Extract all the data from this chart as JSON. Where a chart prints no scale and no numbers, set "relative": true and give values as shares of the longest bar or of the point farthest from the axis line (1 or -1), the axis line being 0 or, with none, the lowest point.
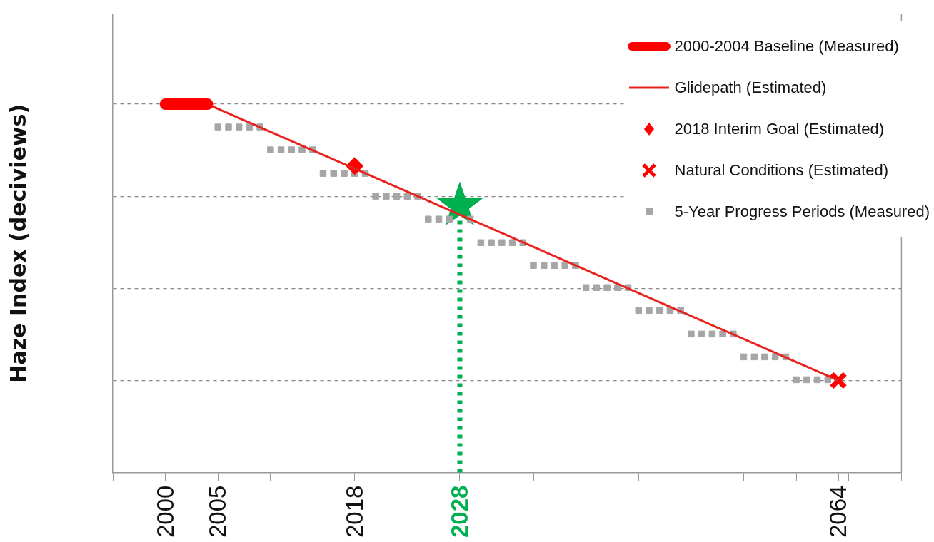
{
  "chart_data": {
    "type": "line",
    "relative": true,
    "ylabel": "Haze Index (deciviews)",
    "xlim": [
      1995,
      2070
    ],
    "xticks": [
      {
        "value": 1995,
        "label": null
      },
      2000,
      2005,
      {
        "value": 2010,
        "label": null
      },
      {
        "value": 2015,
        "label": null
      },
      2018,
      {
        "value": 2020,
        "label": null
      },
      {
        "value": 2025,
        "label": null
      },
      2028,
      {
        "value": 2030,
        "label": null
      },
      {
        "value": 2035,
        "label": null
      },
      {
        "value": 2040,
        "label": null
      },
      {
        "value": 2045,
        "label": null
      },
      {
        "value": 2050,
        "label": null
      },
      {
        "value": 2055,
        "label": null
      },
      {
        "value": 2060,
        "label": null
      },
      2064,
      {
        "value": 2065,
        "label": null
      },
      {
        "value": 2070,
        "label": null
      }
    ],
    "grid": "y",
    "legend": "top right",
    "series": [
      {
        "name": "2000-2004 Baseline (Measured)",
        "color": "#ff0000",
        "marker": "none",
        "x": [
          2000,
          2004
        ],
        "values": [
          1,
          1
        ]
      },
      {
        "name": "Glidepath (Estimated)",
        "color": "#e8231f",
        "marker": "none",
        "x": [
          2004,
          2064
        ],
        "values": [
          1,
          0.25
        ]
      },
      {
        "name": "2018 Interim Goal (Estimated)",
        "type": "scatter",
        "color": "#ff0000",
        "marker": "diamond",
        "x": [
          2018
        ],
        "values": [
          0.832
        ]
      },
      {
        "name": "Natural Conditions (Estimated)",
        "type": "scatter",
        "color": "#ff0000",
        "marker": "cross",
        "x": [
          2064
        ],
        "values": [
          0.25
        ]
      },
      {
        "name": "5-Year Progress Periods (Measured)",
        "type": "scatter",
        "color": "#a6a6a6",
        "marker": "square",
        "x": [
          2005,
          2006,
          2007,
          2008,
          2009,
          2010,
          2011,
          2012,
          2013,
          2014,
          2015,
          2016,
          2017,
          2018,
          2019,
          2020,
          2021,
          2022,
          2023,
          2024,
          2025,
          2026,
          2027,
          2028,
          2029,
          2030,
          2031,
          2032,
          2033,
          2034,
          2035,
          2036,
          2037,
          2038,
          2039,
          2040,
          2041,
          2042,
          2043,
          2044,
          2045,
          2046,
          2047,
          2048,
          2049,
          2050,
          2051,
          2052,
          2053,
          2054,
          2055,
          2056,
          2057,
          2058,
          2059,
          2060,
          2061,
          2062,
          2063
        ],
        "values": [
          0.938,
          0.938,
          0.938,
          0.938,
          0.938,
          0.876,
          0.876,
          0.876,
          0.876,
          0.876,
          0.812,
          0.812,
          0.812,
          0.812,
          0.812,
          0.75,
          0.75,
          0.75,
          0.75,
          0.75,
          0.688,
          0.688,
          0.688,
          null,
          0.688,
          0.624,
          0.624,
          0.624,
          0.624,
          0.624,
          0.562,
          0.562,
          0.562,
          0.562,
          0.562,
          0.502,
          0.502,
          0.502,
          0.502,
          0.502,
          0.44,
          0.44,
          0.44,
          0.44,
          0.44,
          0.376,
          0.376,
          0.376,
          0.376,
          0.376,
          0.314,
          0.314,
          0.314,
          0.314,
          0.314,
          0.252,
          0.252,
          0.252,
          0.252
        ]
      },
      {
        "type": "scatter",
        "color": "#00b050",
        "marker": "star",
        "x": [
          2028
        ],
        "values": [
          0.724
        ]
      }
    ],
    "ref_lines": [
      {
        "axis": "x",
        "value": 2028,
        "color": "#00b050",
        "line_style": "dotted"
      }
    ]
  }
}
